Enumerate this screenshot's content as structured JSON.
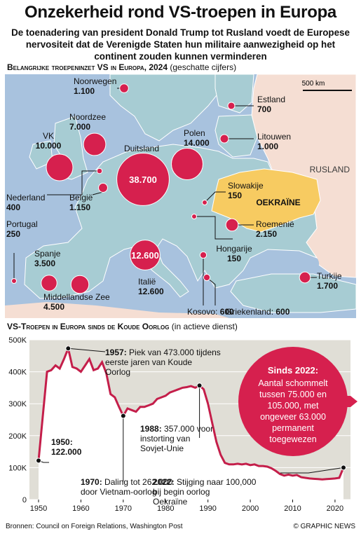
{
  "title": "Onzekerheid rond VS-troepen in Europa",
  "subtitle": "De toenadering van president Donald Trump tot Rusland voedt de Europese nervositeit dat de Verenigde Staten hun militaire aanwezigheid op het continent zouden kunnen verminderen",
  "map_section": {
    "heading": "Belangrijke troepeninzet VS in Europa, 2024",
    "note": "(geschatte cijfers)",
    "scale_label": "500 km",
    "country_labels": {
      "russia": "RUSLAND",
      "ukraine": "OEKRAÏNE"
    },
    "deployments": [
      {
        "name": "Noorwegen",
        "value": "1.100"
      },
      {
        "name": "Noordzee",
        "value": "7.000"
      },
      {
        "name": "VK",
        "value": "10.000"
      },
      {
        "name": "Duitsland",
        "value": "38.700"
      },
      {
        "name": "Polen",
        "value": "14.000"
      },
      {
        "name": "Estland",
        "value": "700"
      },
      {
        "name": "Litouwen",
        "value": "1.000"
      },
      {
        "name": "Nederland",
        "value": "400"
      },
      {
        "name": "België",
        "value": "1.150"
      },
      {
        "name": "Slowakije",
        "value": "150"
      },
      {
        "name": "Roemenië",
        "value": "2.150"
      },
      {
        "name": "Hongarije",
        "value": "150"
      },
      {
        "name": "Portugal",
        "value": "250"
      },
      {
        "name": "Spanje",
        "value": "3.500"
      },
      {
        "name": "Italië",
        "value": "12.600"
      },
      {
        "name": "Turkije",
        "value": "1.700"
      },
      {
        "name": "Middellandse Zee",
        "value": "4.500"
      },
      {
        "name": "Kosovo:",
        "value": "600"
      },
      {
        "name": "Griekenland:",
        "value": "600"
      }
    ]
  },
  "chart_section": {
    "heading": "VS-Troepen in Europa sinds de Koude Oorlog",
    "note": "(in actieve dienst)"
  },
  "chart_data": {
    "type": "area",
    "title": "VS-Troepen in Europa sinds de Koude Oorlog",
    "xlabel": "",
    "ylabel": "",
    "xlim": [
      1950,
      2025
    ],
    "ylim": [
      0,
      500000
    ],
    "x_ticks": [
      "1950",
      "1960",
      "1970",
      "1980",
      "1990",
      "2000",
      "2010",
      "2020"
    ],
    "y_ticks": [
      "0",
      "100K",
      "200K",
      "300K",
      "400K",
      "500K"
    ],
    "grid": true,
    "x": [
      1950,
      1951,
      1952,
      1953,
      1954,
      1955,
      1956,
      1957,
      1958,
      1959,
      1960,
      1961,
      1962,
      1963,
      1964,
      1965,
      1966,
      1967,
      1968,
      1969,
      1970,
      1971,
      1972,
      1973,
      1974,
      1975,
      1976,
      1977,
      1978,
      1979,
      1980,
      1981,
      1982,
      1983,
      1984,
      1985,
      1986,
      1987,
      1988,
      1989,
      1990,
      1991,
      1992,
      1993,
      1994,
      1995,
      1996,
      1997,
      1998,
      1999,
      2000,
      2001,
      2002,
      2003,
      2004,
      2005,
      2006,
      2007,
      2008,
      2009,
      2010,
      2011,
      2012,
      2013,
      2014,
      2015,
      2016,
      2017,
      2018,
      2019,
      2020,
      2021,
      2022
    ],
    "values": [
      122000,
      260000,
      400000,
      405000,
      420000,
      410000,
      440000,
      473000,
      415000,
      410000,
      400000,
      420000,
      440000,
      405000,
      410000,
      430000,
      395000,
      330000,
      320000,
      290000,
      262000,
      285000,
      280000,
      275000,
      290000,
      290000,
      295000,
      300000,
      315000,
      320000,
      325000,
      335000,
      340000,
      345000,
      350000,
      352000,
      355000,
      350000,
      357000,
      345000,
      300000,
      240000,
      180000,
      140000,
      115000,
      110000,
      110000,
      112000,
      110000,
      112000,
      108000,
      110000,
      105000,
      105000,
      103000,
      98000,
      90000,
      80000,
      75000,
      78000,
      75000,
      77000,
      70000,
      68000,
      66000,
      65000,
      64000,
      63000,
      64000,
      65000,
      66000,
      68000,
      100000
    ],
    "annotations": [
      {
        "year": "1957:",
        "text": "Piek van 473.000 tijdens eerste jaren van Koude Oorlog"
      },
      {
        "year": "1950:",
        "text": "122.000"
      },
      {
        "year": "1970:",
        "text": "Daling tot 262.000 door Vietnam-oorlog"
      },
      {
        "year": "1988:",
        "text": "357.000 voor instorting van Sovjet-Unie"
      },
      {
        "year": "2022:",
        "text": "Stijging naar 100,000 bij begin oorlog Oekraïne"
      }
    ],
    "callout": {
      "title": "Sinds 2022:",
      "text": "Aantal schommelt tussen 75.000 en 105.000, met ongeveer 63.000 permanent toegewezen"
    }
  },
  "sources": "Bronnen: Council on Foreign Relations, Washington Post",
  "credit": "© GRAPHIC NEWS",
  "colors": {
    "accent": "#d6204e",
    "line": "#c41e4a",
    "sea": "#a8c2de",
    "land": "#a7ccd3",
    "russia_land": "#f5ded3",
    "ukraine": "#f7cb61",
    "chart_bg": "#e0ded6",
    "text": "#111111"
  }
}
